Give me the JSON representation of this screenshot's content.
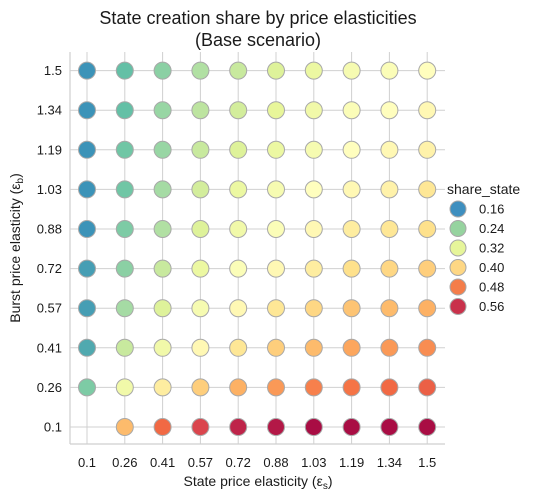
{
  "chart_data": {
    "type": "scatter",
    "title_lines": [
      "State creation share by price elasticities",
      "(Base scenario)"
    ],
    "xlabel": "State price elasticity (ε",
    "xlabel_sub": "s",
    "xlabel_end": ")",
    "ylabel": "Burst price elasticity (ε",
    "ylabel_sub": "b",
    "ylabel_end": ")",
    "x_ticks": [
      "0.1",
      "0.26",
      "0.41",
      "0.57",
      "0.72",
      "0.88",
      "1.03",
      "1.19",
      "1.34",
      "1.5"
    ],
    "y_ticks": [
      "0.1",
      "0.26",
      "0.41",
      "0.57",
      "0.72",
      "0.88",
      "1.03",
      "1.19",
      "1.34",
      "1.5"
    ],
    "grid": true,
    "legend": {
      "title": "share_state",
      "placement": "right",
      "entries": [
        {
          "label": "0.16",
          "color": "#3e8fbf"
        },
        {
          "label": "0.24",
          "color": "#96d39f"
        },
        {
          "label": "0.32",
          "color": "#e6f59a"
        },
        {
          "label": "0.40",
          "color": "#fed784"
        },
        {
          "label": "0.48",
          "color": "#f47d4a"
        },
        {
          "label": "0.56",
          "color": "#c9314b"
        }
      ]
    },
    "color_scale": {
      "name": "Spectral_r",
      "min": 0.13,
      "max": 0.6,
      "stops": [
        "#3288bd",
        "#66c2a5",
        "#abdda4",
        "#e6f598",
        "#ffffbf",
        "#fee08b",
        "#fdae61",
        "#f46d43",
        "#d53e4f",
        "#9e0142"
      ]
    },
    "rows": [
      {
        "y": "0.1",
        "share_state": [
          null,
          0.43,
          0.5,
          0.54,
          0.57,
          0.58,
          0.59,
          0.59,
          0.59,
          0.59
        ]
      },
      {
        "y": "0.26",
        "share_state": [
          0.2,
          0.31,
          0.37,
          0.41,
          0.44,
          0.46,
          0.48,
          0.49,
          0.5,
          0.51
        ]
      },
      {
        "y": "0.41",
        "share_state": [
          0.16,
          0.26,
          0.31,
          0.35,
          0.38,
          0.41,
          0.43,
          0.45,
          0.46,
          0.47
        ]
      },
      {
        "y": "0.57",
        "share_state": [
          0.15,
          0.23,
          0.28,
          0.32,
          0.35,
          0.38,
          0.4,
          0.42,
          0.43,
          0.44
        ]
      },
      {
        "y": "0.72",
        "share_state": [
          0.15,
          0.21,
          0.26,
          0.3,
          0.33,
          0.35,
          0.37,
          0.39,
          0.4,
          0.41
        ]
      },
      {
        "y": "0.88",
        "share_state": [
          0.14,
          0.2,
          0.24,
          0.28,
          0.31,
          0.33,
          0.35,
          0.37,
          0.38,
          0.39
        ]
      },
      {
        "y": "1.03",
        "share_state": [
          0.14,
          0.19,
          0.23,
          0.27,
          0.3,
          0.32,
          0.34,
          0.35,
          0.36,
          0.38
        ]
      },
      {
        "y": "1.19",
        "share_state": [
          0.14,
          0.19,
          0.22,
          0.26,
          0.28,
          0.3,
          0.32,
          0.34,
          0.35,
          0.36
        ]
      },
      {
        "y": "1.34",
        "share_state": [
          0.14,
          0.18,
          0.22,
          0.25,
          0.27,
          0.29,
          0.31,
          0.33,
          0.34,
          0.35
        ]
      },
      {
        "y": "1.5",
        "share_state": [
          0.14,
          0.18,
          0.21,
          0.24,
          0.26,
          0.28,
          0.3,
          0.32,
          0.33,
          0.34
        ]
      }
    ]
  }
}
